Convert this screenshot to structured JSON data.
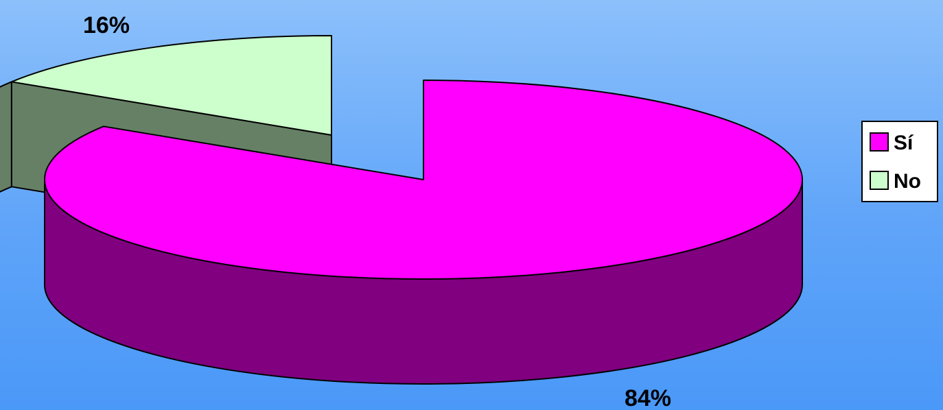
{
  "chart_data": {
    "type": "pie",
    "style": "3d-exploded",
    "categories": [
      "Sí",
      "No"
    ],
    "values": [
      84,
      16
    ],
    "data_labels": [
      "84%",
      "16%"
    ],
    "colors": {
      "Sí": {
        "top": "#ff00ff",
        "side": "#800080"
      },
      "No": {
        "top": "#ccffcc",
        "side": "#668066"
      }
    },
    "legend": {
      "position": "right",
      "entries": [
        "Sí",
        "No"
      ]
    }
  }
}
